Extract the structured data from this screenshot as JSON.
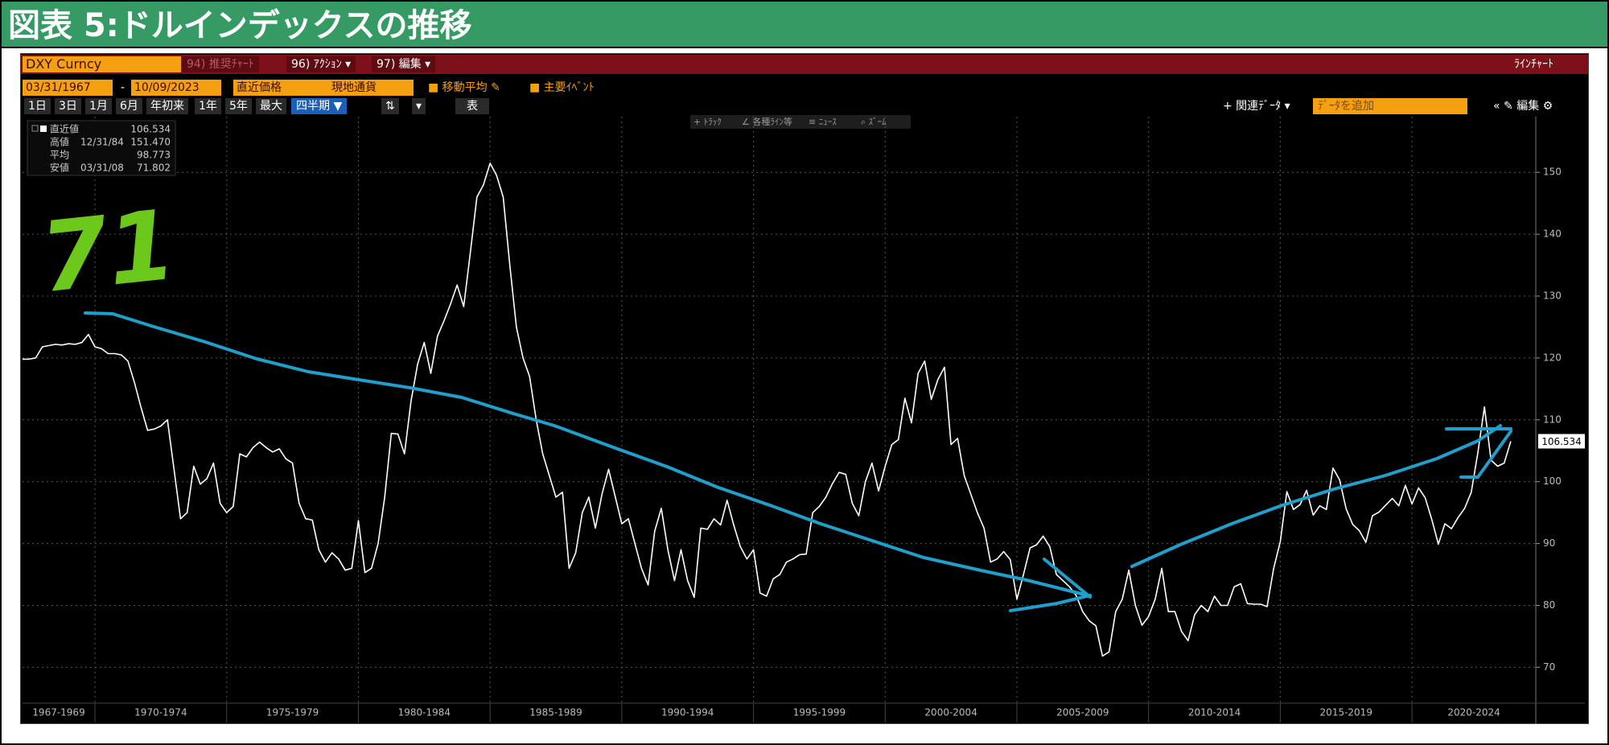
{
  "chart_data": {
    "type": "line",
    "title": "図表 5:ドルインデックスの推移",
    "annotation": "71",
    "x": [
      1967.25,
      1967.5,
      1967.75,
      1968,
      1968.25,
      1968.5,
      1968.75,
      1969,
      1969.25,
      1969.5,
      1969.75,
      1970,
      1970.25,
      1970.5,
      1970.75,
      1971,
      1971.25,
      1971.5,
      1971.75,
      1972,
      1972.25,
      1972.5,
      1972.75,
      1973,
      1973.25,
      1973.5,
      1973.75,
      1974,
      1974.25,
      1974.5,
      1974.75,
      1975,
      1975.25,
      1975.5,
      1975.75,
      1976,
      1976.25,
      1976.5,
      1976.75,
      1977,
      1977.25,
      1977.5,
      1977.75,
      1978,
      1978.25,
      1978.5,
      1978.75,
      1979,
      1979.25,
      1979.5,
      1979.75,
      1980,
      1980.25,
      1980.5,
      1980.75,
      1981,
      1981.25,
      1981.5,
      1981.75,
      1982,
      1982.25,
      1982.5,
      1982.75,
      1983,
      1983.25,
      1983.5,
      1983.75,
      1984,
      1984.25,
      1984.5,
      1984.75,
      1985,
      1985.25,
      1985.5,
      1985.75,
      1986,
      1986.25,
      1986.5,
      1986.75,
      1987,
      1987.25,
      1987.5,
      1987.75,
      1988,
      1988.25,
      1988.5,
      1988.75,
      1989,
      1989.25,
      1989.5,
      1989.75,
      1990,
      1990.25,
      1990.5,
      1990.75,
      1991,
      1991.25,
      1991.5,
      1991.75,
      1992,
      1992.25,
      1992.5,
      1992.75,
      1993,
      1993.25,
      1993.5,
      1993.75,
      1994,
      1994.25,
      1994.5,
      1994.75,
      1995,
      1995.25,
      1995.5,
      1995.75,
      1996,
      1996.25,
      1996.5,
      1996.75,
      1997,
      1997.25,
      1997.5,
      1997.75,
      1998,
      1998.25,
      1998.5,
      1998.75,
      1999,
      1999.25,
      1999.5,
      1999.75,
      2000,
      2000.25,
      2000.5,
      2000.75,
      2001,
      2001.25,
      2001.5,
      2001.75,
      2002,
      2002.25,
      2002.5,
      2002.75,
      2003,
      2003.25,
      2003.5,
      2003.75,
      2004,
      2004.25,
      2004.5,
      2004.75,
      2005,
      2005.25,
      2005.5,
      2005.75,
      2006,
      2006.25,
      2006.5,
      2006.75,
      2007,
      2007.25,
      2007.5,
      2007.75,
      2008,
      2008.25,
      2008.5,
      2008.75,
      2009,
      2009.25,
      2009.5,
      2009.75,
      2010,
      2010.25,
      2010.5,
      2010.75,
      2011,
      2011.25,
      2011.5,
      2011.75,
      2012,
      2012.25,
      2012.5,
      2012.75,
      2013,
      2013.25,
      2013.5,
      2013.75,
      2014,
      2014.25,
      2014.5,
      2014.75,
      2015,
      2015.25,
      2015.5,
      2015.75,
      2016,
      2016.25,
      2016.5,
      2016.75,
      2017,
      2017.25,
      2017.5,
      2017.75,
      2018,
      2018.25,
      2018.5,
      2018.75,
      2019,
      2019.25,
      2019.5,
      2019.75,
      2020,
      2020.25,
      2020.5,
      2020.75,
      2021,
      2021.25,
      2021.5,
      2021.75,
      2022,
      2022.25,
      2022.5,
      2022.75,
      2023,
      2023.25,
      2023.5,
      2023.75
    ],
    "series": [
      {
        "name": "DXY Curncy",
        "color": "#ffffff",
        "values": [
          119.8,
          119.8,
          120,
          121.8,
          122,
          122.2,
          122.1,
          122.3,
          122.2,
          122.5,
          123.8,
          121.8,
          121.5,
          120.7,
          120.7,
          120.5,
          119.5,
          116,
          112,
          108.3,
          108.5,
          109,
          110,
          102,
          94,
          95,
          102.5,
          99.6,
          100.5,
          103,
          96.5,
          95,
          96,
          104.5,
          104,
          105.5,
          106.4,
          105.5,
          104.8,
          105.3,
          103.7,
          103,
          96.5,
          94,
          93.8,
          89,
          87,
          88.5,
          87.5,
          85.7,
          86,
          93.7,
          85.3,
          86,
          90,
          97.5,
          107.8,
          107.7,
          104.5,
          113,
          119,
          122.5,
          117.5,
          123.5,
          126,
          128.7,
          131.8,
          128.3,
          137,
          146,
          148,
          151.47,
          149.5,
          146,
          135,
          125,
          120,
          117,
          110,
          104.5,
          101,
          97.5,
          98.3,
          86,
          88.5,
          95,
          97.5,
          92.5,
          98,
          102,
          97.6,
          93.2,
          94,
          90,
          86,
          83.3,
          92,
          95.7,
          89,
          84,
          89,
          84,
          81.3,
          92.5,
          92.3,
          94,
          93,
          97,
          93,
          89.5,
          87.5,
          89,
          82,
          81.5,
          84.3,
          85,
          87,
          87.5,
          88.2,
          88.3,
          95,
          96,
          97.5,
          99.7,
          101.5,
          101.2,
          96.5,
          94.5,
          100,
          103,
          98.5,
          102.5,
          106,
          106.8,
          113.5,
          109.5,
          117.5,
          119.5,
          113.3,
          116.5,
          118.5,
          106,
          107,
          101,
          98,
          95,
          92.5,
          87,
          87.5,
          88.7,
          87.4,
          81,
          85,
          89.3,
          89.8,
          91.2,
          89.5,
          85,
          84,
          83,
          81.6,
          79,
          77.5,
          76.7,
          71.802,
          72.5,
          79,
          81,
          85.7,
          80,
          76.8,
          78.2,
          81,
          86,
          79,
          79,
          75.8,
          74.3,
          78.5,
          80,
          79,
          81.5,
          80,
          80,
          83,
          83.5,
          80.3,
          80.2,
          80.2,
          79.8,
          86,
          90.3,
          98.4,
          95.5,
          96.3,
          98.6,
          94.6,
          96.1,
          95.5,
          102.2,
          100.3,
          95.6,
          93.1,
          92.1,
          90.2,
          94.5,
          95.1,
          96.2,
          97.3,
          96.1,
          99.4,
          96.4,
          99,
          97.4,
          93.9,
          89.9,
          93.2,
          92.4,
          94.2,
          95.7,
          98.3,
          104.7,
          112.1,
          103.5,
          102.5,
          103,
          106.534
        ]
      }
    ],
    "xlim": [
      1967.25,
      2024.7
    ],
    "xticks": [
      {
        "value": 1967,
        "label": "1967-1969"
      },
      {
        "value": 1970,
        "label": "1970-1974"
      },
      {
        "value": 1975,
        "label": "1975-1979"
      },
      {
        "value": 1980,
        "label": "1980-1984"
      },
      {
        "value": 1985,
        "label": "1985-1989"
      },
      {
        "value": 1990,
        "label": "1990-1994"
      },
      {
        "value": 1995,
        "label": "1995-1999"
      },
      {
        "value": 2000,
        "label": "2000-2004"
      },
      {
        "value": 2005,
        "label": "2005-2009"
      },
      {
        "value": 2010,
        "label": "2010-2014"
      },
      {
        "value": 2015,
        "label": "2015-2019"
      },
      {
        "value": 2020,
        "label": "2020-2024"
      }
    ],
    "ylim": [
      64.2,
      159
    ],
    "yticks": [
      70,
      80,
      90,
      100,
      110,
      120,
      130,
      140,
      150
    ],
    "grid": true,
    "stats": [
      {
        "label": "直近値",
        "value": "106.534"
      },
      {
        "label": "高値",
        "date": "12/31/84",
        "value": "151.470"
      },
      {
        "label": "平均",
        "value": "98.773"
      },
      {
        "label": "安値",
        "date": "03/31/08",
        "value": "71.802"
      }
    ]
  },
  "ui": {
    "actions": [
      "94) 推奨ﾁｬｰﾄ",
      "96) ｱｸｼｮﾝ ▾",
      "97) 編集 ▾"
    ],
    "chart_kind": "ﾗｲﾝﾁｬｰﾄ",
    "start": "03/31/1967",
    "separator": "-",
    "end": "10/09/2023",
    "price": "直近価格",
    "currency": "現地通貨",
    "ma": "■ 移動平均 ✎",
    "events": "■ 主要ｲﾍﾞﾝﾄ",
    "periods": [
      "1日",
      "3日",
      "1月",
      "6月",
      "年初来",
      "1年",
      "5年",
      "最大"
    ],
    "frequency": "四半期 ▼",
    "sort": "⇅",
    "more": "▾",
    "table": "表",
    "related": "+ 関連ﾃﾞｰﾀ ▾",
    "add_data": "ﾃﾞｰﾀを追加",
    "edit": "« ✎ 編集 ⚙",
    "tools": [
      "+ ﾄﾗｯｸ",
      "∠ 各種ﾗｲﾝ等",
      "≡ ﾆｭｰｽ",
      "⌕ ｽﾞｰﾑ"
    ]
  }
}
